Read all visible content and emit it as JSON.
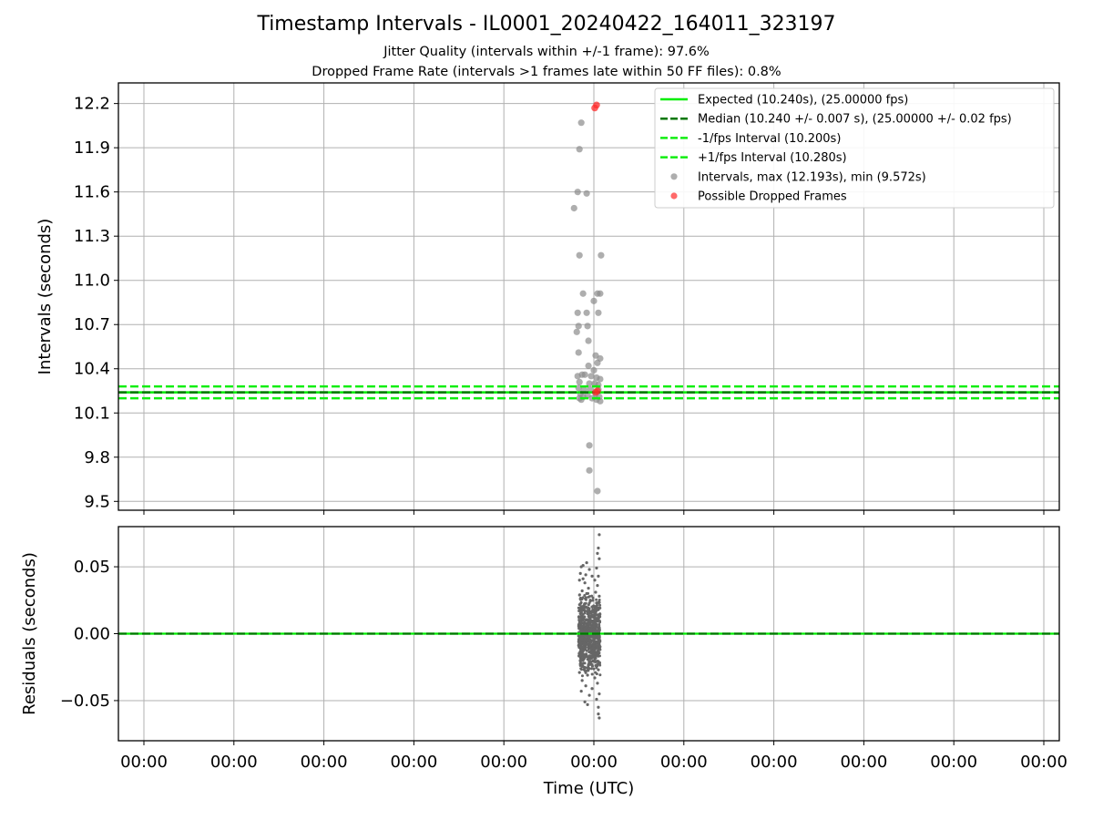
{
  "title": "Timestamp Intervals - IL0001_20240422_164011_323197",
  "subtitle_1": "Jitter Quality (intervals within +/-1 frame): 97.6%",
  "subtitle_2": "Dropped Frame Rate (intervals >1 frames late within 50 FF files): 0.8%",
  "colors": {
    "expected": "#00ee00",
    "median": "#007700",
    "interval_bounds": "#11ee11",
    "intervals": "#8c8c8c",
    "dropped": "#ff2a2a",
    "residuals": "#666666"
  },
  "chart_data": [
    {
      "type": "scatter",
      "name": "intervals-panel",
      "ylabel": "Intervals (seconds)",
      "xlabel": "",
      "ylim": [
        9.44,
        12.34
      ],
      "yticks": [
        9.5,
        9.8,
        10.1,
        10.4,
        10.7,
        11.0,
        11.3,
        11.6,
        11.9,
        12.2
      ],
      "ytick_labels": [
        "9.5",
        "9.8",
        "10.1",
        "10.4",
        "10.7",
        "11.0",
        "11.3",
        "11.6",
        "11.9",
        "12.2"
      ],
      "grid": true,
      "legend_position": "top-right",
      "reference_lines": [
        {
          "name": "Expected (10.240s), (25.00000 fps)",
          "y": 10.24,
          "style": "solid",
          "color": "#00ee00"
        },
        {
          "name": "Median (10.240 +/- 0.007 s), (25.00000 +/- 0.02 fps)",
          "y": 10.24,
          "style": "dashed",
          "color": "#007700"
        },
        {
          "name": "-1/fps Interval (10.200s)",
          "y": 10.2,
          "style": "dashed",
          "color": "#11ee11"
        },
        {
          "name": "+1/fps Interval (10.280s)",
          "y": 10.28,
          "style": "dashed",
          "color": "#11ee11"
        }
      ],
      "series": [
        {
          "name": "Intervals, max (12.193s), min (9.572s)",
          "color": "#8c8c8c",
          "points": [
            {
              "x": -0.14,
              "y": 12.07
            },
            {
              "x": -0.16,
              "y": 11.89
            },
            {
              "x": -0.18,
              "y": 11.6
            },
            {
              "x": -0.08,
              "y": 11.59
            },
            {
              "x": -0.22,
              "y": 11.49
            },
            {
              "x": -0.16,
              "y": 11.17
            },
            {
              "x": 0.08,
              "y": 11.17
            },
            {
              "x": -0.12,
              "y": 10.91
            },
            {
              "x": 0.04,
              "y": 10.91
            },
            {
              "x": 0.07,
              "y": 10.91
            },
            {
              "x": 0.0,
              "y": 10.86
            },
            {
              "x": -0.18,
              "y": 10.78
            },
            {
              "x": -0.08,
              "y": 10.78
            },
            {
              "x": 0.05,
              "y": 10.78
            },
            {
              "x": -0.17,
              "y": 10.69
            },
            {
              "x": -0.07,
              "y": 10.69
            },
            {
              "x": -0.19,
              "y": 10.65
            },
            {
              "x": -0.06,
              "y": 10.59
            },
            {
              "x": -0.17,
              "y": 10.51
            },
            {
              "x": 0.02,
              "y": 10.49
            },
            {
              "x": 0.07,
              "y": 10.47
            },
            {
              "x": 0.04,
              "y": 10.44
            },
            {
              "x": -0.06,
              "y": 10.42
            },
            {
              "x": 0.0,
              "y": 10.39
            },
            {
              "x": -0.18,
              "y": 10.35
            },
            {
              "x": -0.13,
              "y": 10.36
            },
            {
              "x": -0.1,
              "y": 10.36
            },
            {
              "x": -0.03,
              "y": 10.35
            },
            {
              "x": 0.03,
              "y": 10.34
            },
            {
              "x": 0.07,
              "y": 10.33
            },
            {
              "x": -0.16,
              "y": 10.31
            },
            {
              "x": -0.05,
              "y": 10.3
            },
            {
              "x": 0.01,
              "y": 10.3
            },
            {
              "x": 0.05,
              "y": 10.29
            },
            {
              "x": -0.17,
              "y": 10.27
            },
            {
              "x": -0.11,
              "y": 10.26
            },
            {
              "x": -0.04,
              "y": 10.26
            },
            {
              "x": 0.05,
              "y": 10.26
            },
            {
              "x": -0.15,
              "y": 10.23
            },
            {
              "x": -0.07,
              "y": 10.22
            },
            {
              "x": 0.02,
              "y": 10.23
            },
            {
              "x": -0.16,
              "y": 10.2
            },
            {
              "x": -0.12,
              "y": 10.21
            },
            {
              "x": -0.02,
              "y": 10.2
            },
            {
              "x": 0.06,
              "y": 10.21
            },
            {
              "x": -0.14,
              "y": 10.19
            },
            {
              "x": 0.03,
              "y": 10.19
            },
            {
              "x": 0.07,
              "y": 10.18
            },
            {
              "x": -0.05,
              "y": 9.88
            },
            {
              "x": -0.05,
              "y": 9.71
            },
            {
              "x": 0.04,
              "y": 9.57
            }
          ]
        },
        {
          "name": "Possible Dropped Frames",
          "color": "#ff2a2a",
          "points": [
            {
              "x": 0.03,
              "y": 12.19
            },
            {
              "x": 0.01,
              "y": 12.17
            },
            {
              "x": 0.04,
              "y": 10.25
            },
            {
              "x": 0.02,
              "y": 10.24
            }
          ]
        }
      ]
    },
    {
      "type": "scatter",
      "name": "residuals-panel",
      "ylabel": "Residuals (seconds)",
      "xlabel": "Time (UTC)",
      "ylim": [
        -0.08,
        0.08
      ],
      "yticks": [
        -0.05,
        0.0,
        0.05
      ],
      "ytick_labels": [
        "−0.05",
        "0.00",
        "0.05"
      ],
      "x_tick_labels": [
        "00:00",
        "00:00",
        "00:00",
        "00:00",
        "00:00",
        "00:00",
        "00:00",
        "00:00",
        "00:00",
        "00:00",
        "00:00"
      ],
      "grid": true,
      "reference_lines": [
        {
          "y": 0.0,
          "style": "solid",
          "color": "#00ee00"
        },
        {
          "y": 0.0,
          "style": "dashed",
          "color": "#007700"
        }
      ],
      "series": [
        {
          "name": "Residuals",
          "color": "#666666",
          "points": [
            {
              "x": 0.06,
              "y": 0.074
            },
            {
              "x": 0.05,
              "y": 0.064
            },
            {
              "x": 0.04,
              "y": 0.06
            },
            {
              "x": 0.06,
              "y": 0.056
            },
            {
              "x": -0.08,
              "y": 0.053
            },
            {
              "x": -0.12,
              "y": 0.051
            },
            {
              "x": -0.14,
              "y": 0.05
            },
            {
              "x": -0.05,
              "y": 0.048
            },
            {
              "x": 0.03,
              "y": 0.049
            },
            {
              "x": -0.15,
              "y": 0.045
            },
            {
              "x": -0.09,
              "y": 0.044
            },
            {
              "x": -0.02,
              "y": 0.043
            },
            {
              "x": 0.05,
              "y": 0.043
            },
            {
              "x": -0.12,
              "y": 0.041
            },
            {
              "x": 0.01,
              "y": 0.04
            },
            {
              "x": -0.16,
              "y": 0.04
            },
            {
              "x": -0.1,
              "y": 0.038
            },
            {
              "x": 0.04,
              "y": 0.036
            },
            {
              "x": -0.06,
              "y": 0.034
            },
            {
              "x": -0.13,
              "y": 0.032
            },
            {
              "x": 0.02,
              "y": 0.031
            },
            {
              "x": -0.08,
              "y": 0.03
            },
            {
              "x": 0.06,
              "y": 0.028
            },
            {
              "x": -0.15,
              "y": 0.026
            },
            {
              "x": -0.04,
              "y": 0.025
            },
            {
              "x": 0.03,
              "y": 0.023
            },
            {
              "x": -0.11,
              "y": 0.021
            },
            {
              "x": -0.02,
              "y": 0.02
            },
            {
              "x": 0.05,
              "y": 0.018
            },
            {
              "x": -0.14,
              "y": 0.016
            },
            {
              "x": -0.07,
              "y": 0.015
            },
            {
              "x": 0.01,
              "y": 0.013
            },
            {
              "x": -0.12,
              "y": 0.011
            },
            {
              "x": 0.04,
              "y": 0.01
            },
            {
              "x": -0.05,
              "y": 0.008
            },
            {
              "x": -0.16,
              "y": 0.006
            },
            {
              "x": 0.02,
              "y": 0.005
            },
            {
              "x": -0.09,
              "y": 0.003
            },
            {
              "x": 0.06,
              "y": 0.002
            },
            {
              "x": -0.13,
              "y": 0.001
            },
            {
              "x": -0.03,
              "y": -0.001
            },
            {
              "x": 0.03,
              "y": -0.002
            },
            {
              "x": -0.1,
              "y": -0.004
            },
            {
              "x": -0.15,
              "y": -0.006
            },
            {
              "x": 0.05,
              "y": -0.007
            },
            {
              "x": -0.06,
              "y": -0.009
            },
            {
              "x": 0.0,
              "y": -0.011
            },
            {
              "x": -0.12,
              "y": -0.013
            },
            {
              "x": 0.04,
              "y": -0.015
            },
            {
              "x": -0.08,
              "y": -0.017
            },
            {
              "x": -0.14,
              "y": -0.019
            },
            {
              "x": 0.02,
              "y": -0.021
            },
            {
              "x": -0.04,
              "y": -0.023
            },
            {
              "x": -0.11,
              "y": -0.025
            },
            {
              "x": 0.05,
              "y": -0.027
            },
            {
              "x": -0.16,
              "y": -0.029
            },
            {
              "x": -0.07,
              "y": -0.031
            },
            {
              "x": 0.01,
              "y": -0.033
            },
            {
              "x": -0.13,
              "y": -0.035
            },
            {
              "x": 0.04,
              "y": -0.037
            },
            {
              "x": -0.09,
              "y": -0.039
            },
            {
              "x": -0.02,
              "y": -0.041
            },
            {
              "x": -0.14,
              "y": -0.043
            },
            {
              "x": 0.06,
              "y": -0.045
            },
            {
              "x": -0.05,
              "y": -0.046
            },
            {
              "x": 0.03,
              "y": -0.049
            },
            {
              "x": -0.1,
              "y": -0.051
            },
            {
              "x": -0.07,
              "y": -0.053
            },
            {
              "x": 0.05,
              "y": -0.055
            },
            {
              "x": 0.05,
              "y": -0.06
            },
            {
              "x": 0.06,
              "y": -0.063
            }
          ]
        }
      ]
    }
  ],
  "legend": [
    {
      "label": "Expected (10.240s), (25.00000 fps)",
      "marker": "solid-line",
      "color": "#00ee00"
    },
    {
      "label": "Median (10.240 +/- 0.007 s), (25.00000 +/- 0.02 fps)",
      "marker": "dashed-line",
      "color": "#007700"
    },
    {
      "label": "-1/fps Interval (10.200s)",
      "marker": "dashed-line",
      "color": "#11ee11"
    },
    {
      "label": "+1/fps Interval (10.280s)",
      "marker": "dashed-line",
      "color": "#11ee11"
    },
    {
      "label": "Intervals, max (12.193s), min (9.572s)",
      "marker": "dot",
      "color": "#8c8c8c"
    },
    {
      "label": "Possible Dropped Frames",
      "marker": "dot",
      "color": "#ff2a2a"
    }
  ]
}
